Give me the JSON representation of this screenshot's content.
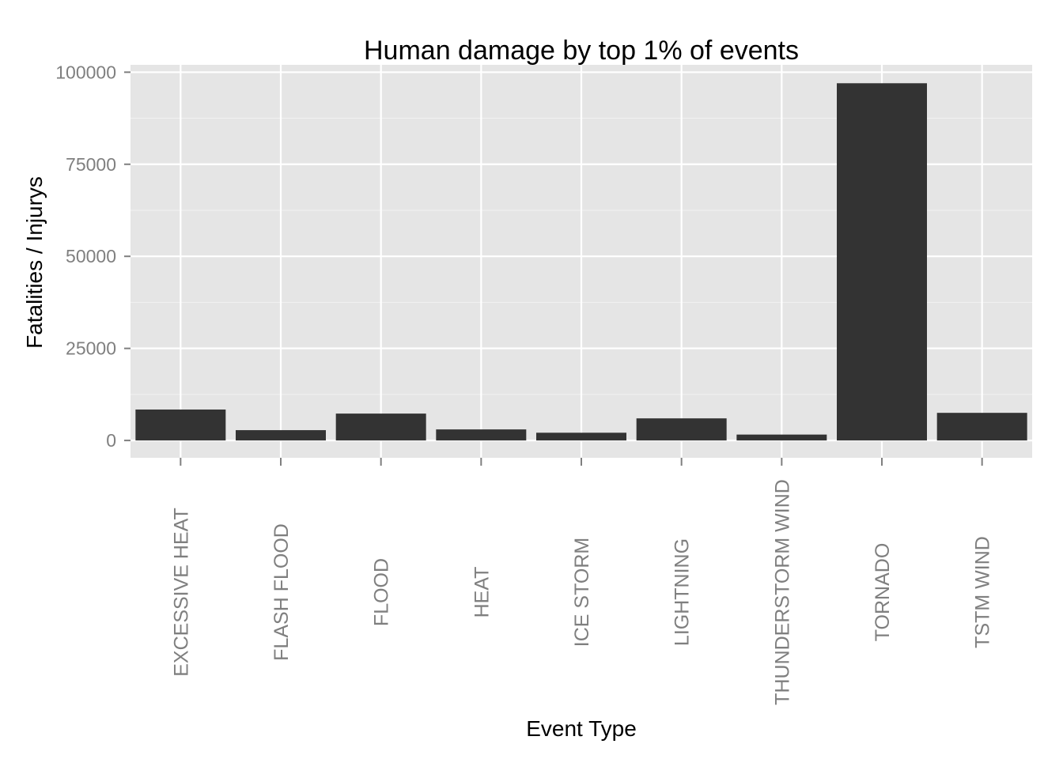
{
  "chart_data": {
    "type": "bar",
    "title": "Human damage by top 1% of events",
    "xlabel": "Event Type",
    "ylabel": "Fatalities / Injurys",
    "categories": [
      "EXCESSIVE HEAT",
      "FLASH FLOOD",
      "FLOOD",
      "HEAT",
      "ICE STORM",
      "LIGHTNING",
      "THUNDERSTORM WIND",
      "TORNADO",
      "TSTM WIND"
    ],
    "values": [
      8400,
      2800,
      7300,
      3000,
      2100,
      6000,
      1600,
      97000,
      7500
    ],
    "yticks": [
      0,
      25000,
      50000,
      75000,
      100000
    ],
    "ytick_labels": [
      "0",
      "25000",
      "50000",
      "75000",
      "100000"
    ],
    "ylim": [
      -4700,
      102000
    ],
    "grid": true,
    "legend": "none",
    "colors": {
      "bar": "#333333",
      "panel": "#e5e5e5",
      "grid_major": "#ffffff",
      "grid_minor": "#f2f2f2",
      "tick_text": "#7f7f7f"
    }
  }
}
